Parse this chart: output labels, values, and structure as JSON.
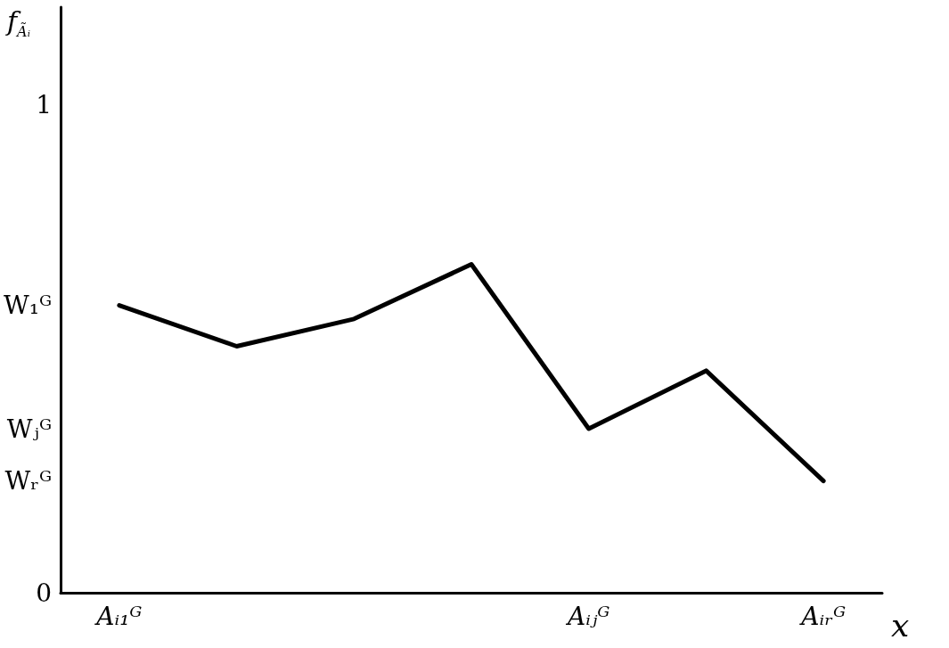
{
  "chart_data": {
    "type": "line",
    "xlabel": "x",
    "ylabel": "f$_{Ãᵢ}$",
    "categories": [
      "Aᵢ₁ᴳ",
      null,
      null,
      null,
      "Aᵢⱼᴳ",
      null,
      "Aᵢᵣᴳ"
    ],
    "series": [
      {
        "color": "#000000",
        "values": [
          0.589,
          0.505,
          0.561,
          0.673,
          0.336,
          0.455,
          0.229
        ]
      }
    ],
    "ylim": [
      0,
      1.2
    ],
    "yticks": [
      0,
      {
        "value": 0.229,
        "label": "Wᵣᴳ"
      },
      {
        "value": 0.336,
        "label": "Wⱼᴳ"
      },
      {
        "value": 0.589,
        "label": "W₁ᴳ"
      },
      1
    ],
    "marker": "none",
    "line_style": "solid"
  }
}
